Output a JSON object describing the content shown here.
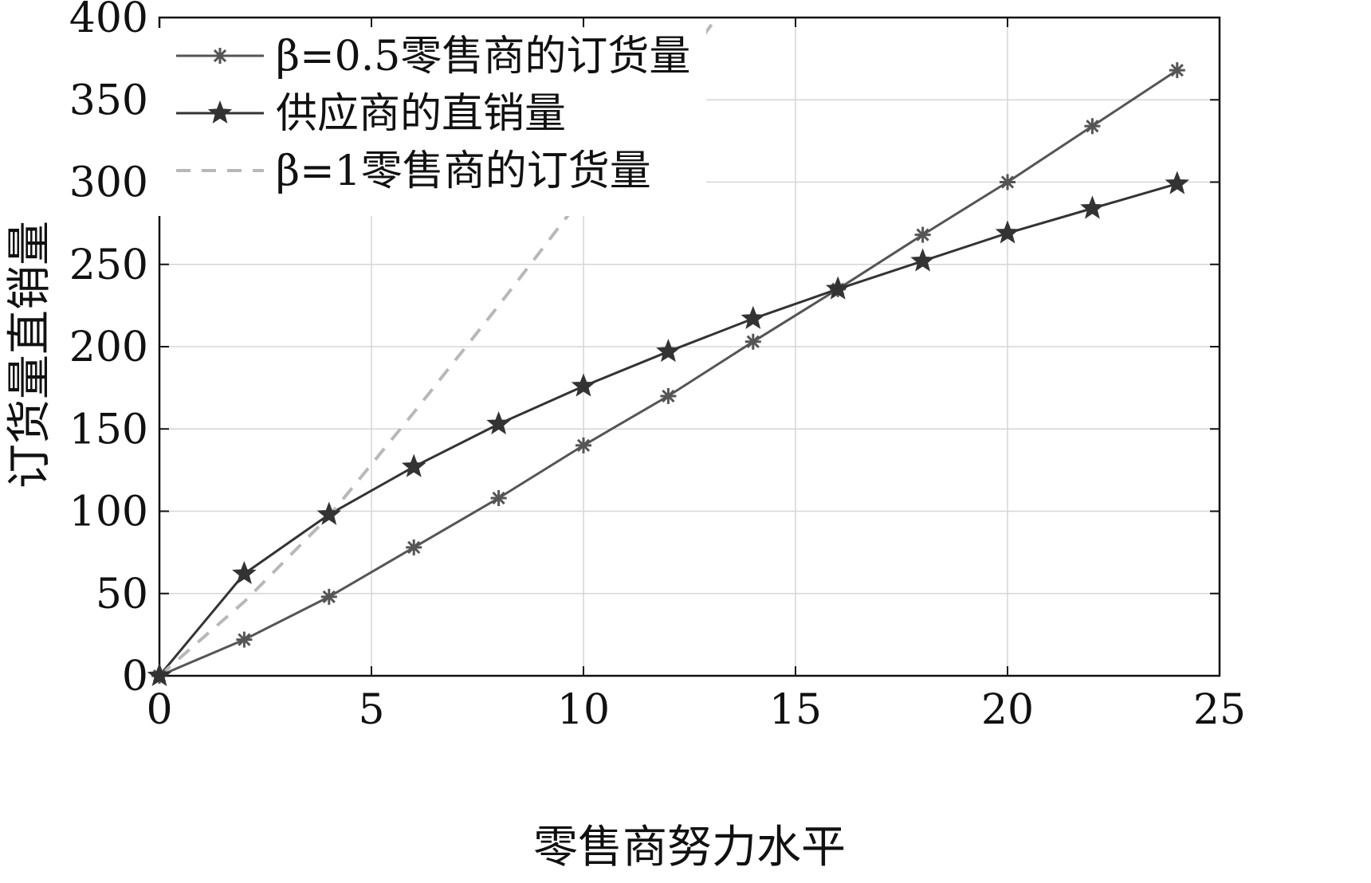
{
  "chart_data": {
    "type": "line",
    "title": "",
    "xlabel": "零售商努力水平",
    "ylabel": "订货量直销量",
    "xlim": [
      0,
      25
    ],
    "ylim": [
      0,
      400
    ],
    "xticks": [
      0,
      5,
      10,
      15,
      20,
      25
    ],
    "yticks": [
      0,
      50,
      100,
      150,
      200,
      250,
      300,
      350,
      400
    ],
    "grid": true,
    "legend_position": "top-left",
    "series": [
      {
        "name": "β=0.5零售商的订货量",
        "color": "#555555",
        "line_style": "solid",
        "marker": "asterisk",
        "x": [
          0,
          2,
          4,
          6,
          8,
          10,
          12,
          14,
          16,
          18,
          20,
          22,
          24
        ],
        "y": [
          0,
          22,
          48,
          78,
          108,
          140,
          170,
          203,
          235,
          268,
          300,
          334,
          368
        ]
      },
      {
        "name": "供应商的直销量",
        "color": "#333333",
        "line_style": "solid",
        "marker": "star",
        "x": [
          0,
          2,
          4,
          6,
          8,
          10,
          12,
          14,
          16,
          18,
          20,
          22,
          24
        ],
        "y": [
          0,
          62,
          98,
          127,
          153,
          176,
          197,
          217,
          235,
          252,
          269,
          284,
          299
        ]
      },
      {
        "name": "β=1零售商的订货量",
        "color": "#b8b8b8",
        "line_style": "dashed",
        "marker": "none",
        "x": [
          0,
          2,
          4,
          6,
          8,
          10,
          12,
          14
        ],
        "y": [
          0,
          45,
          97,
          160,
          225,
          292,
          360,
          430
        ]
      }
    ]
  }
}
